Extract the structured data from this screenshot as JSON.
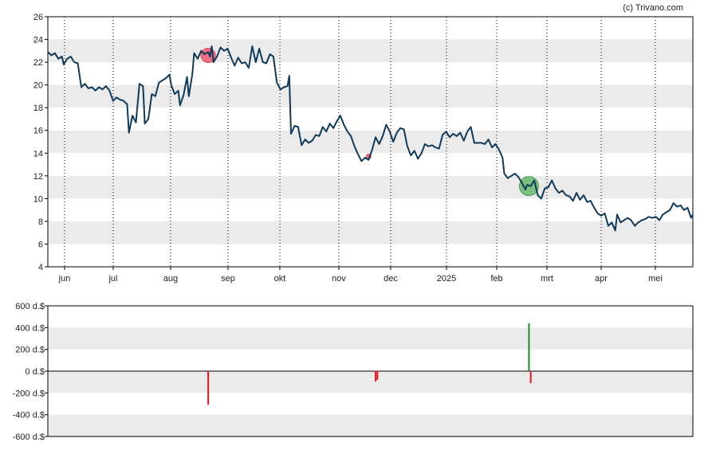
{
  "copyright": "(c) Trivano.com",
  "colors": {
    "price_line": "#0f3a5a",
    "band": "#ebebeb",
    "grid_vertical": "#000000",
    "sell": "#e8121f",
    "buy": "#1d8a2a",
    "sell_marker": "#f06f80",
    "buy_marker": "#7dbf7f",
    "frame": "#000000"
  },
  "chart_data": [
    {
      "type": "line",
      "name": "price",
      "x_months": [
        "jun",
        "jul",
        "aug",
        "sep",
        "okt",
        "nov",
        "dec",
        "2025",
        "feb",
        "mrt",
        "apr",
        "mei"
      ],
      "yticks": [
        4,
        6,
        8,
        10,
        12,
        14,
        16,
        18,
        20,
        22,
        24,
        26
      ],
      "ylim": [
        4,
        26
      ],
      "grid": "alternating horizontal bands, dotted vertical month lines",
      "x_range_days": [
        0,
        366
      ],
      "series": [
        {
          "points": [
            [
              0,
              22.9
            ],
            [
              2,
              22.6
            ],
            [
              4,
              22.8
            ],
            [
              6,
              22.3
            ],
            [
              8,
              22.5
            ],
            [
              9,
              21.8
            ],
            [
              11,
              22.3
            ],
            [
              13,
              22.5
            ],
            [
              15,
              22.0
            ],
            [
              17,
              21.9
            ],
            [
              19,
              19.8
            ],
            [
              21,
              20.1
            ],
            [
              23,
              19.7
            ],
            [
              25,
              19.8
            ],
            [
              27,
              19.5
            ],
            [
              29,
              19.8
            ],
            [
              31,
              19.6
            ],
            [
              33,
              19.9
            ],
            [
              35,
              19.5
            ],
            [
              37,
              18.6
            ],
            [
              39,
              18.9
            ],
            [
              41,
              18.7
            ],
            [
              43,
              18.6
            ],
            [
              45,
              18.3
            ],
            [
              46,
              15.8
            ],
            [
              48,
              17.3
            ],
            [
              50,
              16.7
            ],
            [
              52,
              20.1
            ],
            [
              54,
              19.9
            ],
            [
              55,
              16.6
            ],
            [
              57,
              17.0
            ],
            [
              59,
              19.2
            ],
            [
              61,
              19.0
            ],
            [
              63,
              20.2
            ],
            [
              65,
              20.4
            ],
            [
              67,
              20.6
            ],
            [
              69,
              20.9
            ],
            [
              70,
              20.0
            ],
            [
              72,
              19.2
            ],
            [
              74,
              19.5
            ],
            [
              75,
              18.2
            ],
            [
              77,
              19.1
            ],
            [
              79,
              20.7
            ],
            [
              80,
              19.0
            ],
            [
              82,
              21.0
            ],
            [
              83,
              22.8
            ],
            [
              85,
              22.3
            ],
            [
              87,
              23.0
            ],
            [
              89,
              22.7
            ],
            [
              91,
              22.9
            ],
            [
              92,
              22.5
            ],
            [
              93,
              23.4
            ],
            [
              94,
              22.0
            ],
            [
              96,
              22.5
            ],
            [
              98,
              23.3
            ],
            [
              100,
              23.0
            ],
            [
              102,
              23.2
            ],
            [
              104,
              22.4
            ],
            [
              106,
              21.7
            ],
            [
              108,
              22.4
            ],
            [
              110,
              21.9
            ],
            [
              112,
              22.0
            ],
            [
              114,
              21.5
            ],
            [
              116,
              23.4
            ],
            [
              118,
              22.0
            ],
            [
              120,
              23.2
            ],
            [
              122,
              22.0
            ],
            [
              124,
              21.9
            ],
            [
              126,
              22.7
            ],
            [
              128,
              22.5
            ],
            [
              130,
              20.2
            ],
            [
              132,
              19.6
            ],
            [
              134,
              19.8
            ],
            [
              136,
              19.9
            ],
            [
              137,
              20.8
            ],
            [
              138,
              15.7
            ],
            [
              140,
              16.4
            ],
            [
              142,
              16.3
            ],
            [
              144,
              14.7
            ],
            [
              146,
              15.2
            ],
            [
              148,
              14.9
            ],
            [
              150,
              15.1
            ],
            [
              152,
              15.6
            ],
            [
              154,
              15.5
            ],
            [
              156,
              16.3
            ],
            [
              158,
              15.9
            ],
            [
              160,
              16.6
            ],
            [
              162,
              16.2
            ],
            [
              164,
              16.8
            ],
            [
              166,
              17.3
            ],
            [
              168,
              16.5
            ],
            [
              170,
              15.9
            ],
            [
              172,
              15.5
            ],
            [
              174,
              14.6
            ],
            [
              176,
              13.9
            ],
            [
              178,
              13.3
            ],
            [
              180,
              13.6
            ],
            [
              182,
              13.4
            ],
            [
              184,
              14.3
            ],
            [
              186,
              15.4
            ],
            [
              188,
              14.8
            ],
            [
              190,
              15.5
            ],
            [
              192,
              16.5
            ],
            [
              194,
              15.9
            ],
            [
              196,
              15.0
            ],
            [
              198,
              15.8
            ],
            [
              200,
              16.2
            ],
            [
              202,
              16.1
            ],
            [
              204,
              14.6
            ],
            [
              206,
              13.8
            ],
            [
              208,
              14.2
            ],
            [
              210,
              13.5
            ],
            [
              212,
              14.0
            ],
            [
              214,
              14.8
            ],
            [
              216,
              14.6
            ],
            [
              218,
              14.7
            ],
            [
              220,
              14.5
            ],
            [
              222,
              14.4
            ],
            [
              224,
              15.6
            ],
            [
              226,
              15.9
            ],
            [
              228,
              15.4
            ],
            [
              230,
              15.7
            ],
            [
              232,
              15.5
            ],
            [
              234,
              15.8
            ],
            [
              236,
              15.1
            ],
            [
              238,
              15.9
            ],
            [
              240,
              16.3
            ],
            [
              242,
              14.9
            ],
            [
              244,
              14.9
            ],
            [
              246,
              14.9
            ],
            [
              248,
              14.8
            ],
            [
              250,
              15.2
            ],
            [
              252,
              14.5
            ],
            [
              254,
              14.8
            ],
            [
              256,
              14.3
            ],
            [
              258,
              13.6
            ],
            [
              259,
              12.2
            ],
            [
              261,
              11.8
            ],
            [
              263,
              12.0
            ],
            [
              265,
              12.2
            ],
            [
              267,
              11.9
            ],
            [
              269,
              11.4
            ],
            [
              271,
              10.8
            ],
            [
              272,
              11.2
            ],
            [
              274,
              11.1
            ],
            [
              276,
              11.6
            ],
            [
              278,
              10.3
            ],
            [
              280,
              10.0
            ],
            [
              282,
              10.9
            ],
            [
              284,
              11.0
            ],
            [
              286,
              11.6
            ],
            [
              288,
              10.9
            ],
            [
              290,
              10.5
            ],
            [
              292,
              10.7
            ],
            [
              294,
              10.3
            ],
            [
              296,
              10.2
            ],
            [
              298,
              9.8
            ],
            [
              300,
              10.5
            ],
            [
              302,
              9.9
            ],
            [
              304,
              10.3
            ],
            [
              306,
              9.7
            ],
            [
              308,
              9.8
            ],
            [
              310,
              9.2
            ],
            [
              312,
              8.7
            ],
            [
              314,
              8.5
            ],
            [
              316,
              8.7
            ],
            [
              318,
              7.6
            ],
            [
              320,
              7.9
            ],
            [
              322,
              7.2
            ],
            [
              323,
              8.6
            ],
            [
              325,
              7.9
            ],
            [
              327,
              8.1
            ],
            [
              329,
              8.3
            ],
            [
              331,
              8.1
            ],
            [
              333,
              7.6
            ],
            [
              335,
              7.9
            ],
            [
              337,
              8.1
            ],
            [
              339,
              8.2
            ],
            [
              341,
              8.4
            ],
            [
              343,
              8.3
            ],
            [
              345,
              8.4
            ],
            [
              347,
              8.1
            ],
            [
              349,
              8.6
            ],
            [
              351,
              8.8
            ],
            [
              353,
              9.0
            ],
            [
              355,
              9.6
            ],
            [
              357,
              9.3
            ],
            [
              359,
              9.4
            ],
            [
              361,
              9.0
            ],
            [
              363,
              9.2
            ],
            [
              365,
              8.3
            ],
            [
              366,
              8.6
            ]
          ]
        }
      ],
      "markers": [
        {
          "type": "sell",
          "x": 91,
          "y": 22.6
        },
        {
          "type": "sell",
          "x": 182,
          "y": 13.7
        },
        {
          "type": "buy",
          "x": 273,
          "y": 11.1
        }
      ]
    },
    {
      "type": "bar",
      "name": "transactions",
      "yticks": [
        "600 d.$",
        "400 d.$",
        "200 d.$",
        "0 d.$",
        "-200 d.$",
        "-400 d.$",
        "-600 d.$"
      ],
      "ytick_values": [
        600,
        400,
        200,
        0,
        -200,
        -400,
        -600
      ],
      "ylim": [
        -600,
        600
      ],
      "unit": "d.$",
      "bars": [
        {
          "x": 91,
          "value": -310,
          "type": "sell"
        },
        {
          "x": 186,
          "value": -95,
          "type": "sell"
        },
        {
          "x": 187,
          "value": -80,
          "type": "sell"
        },
        {
          "x": 273,
          "value": 440,
          "type": "buy"
        },
        {
          "x": 274,
          "value": -110,
          "type": "sell"
        }
      ]
    }
  ]
}
